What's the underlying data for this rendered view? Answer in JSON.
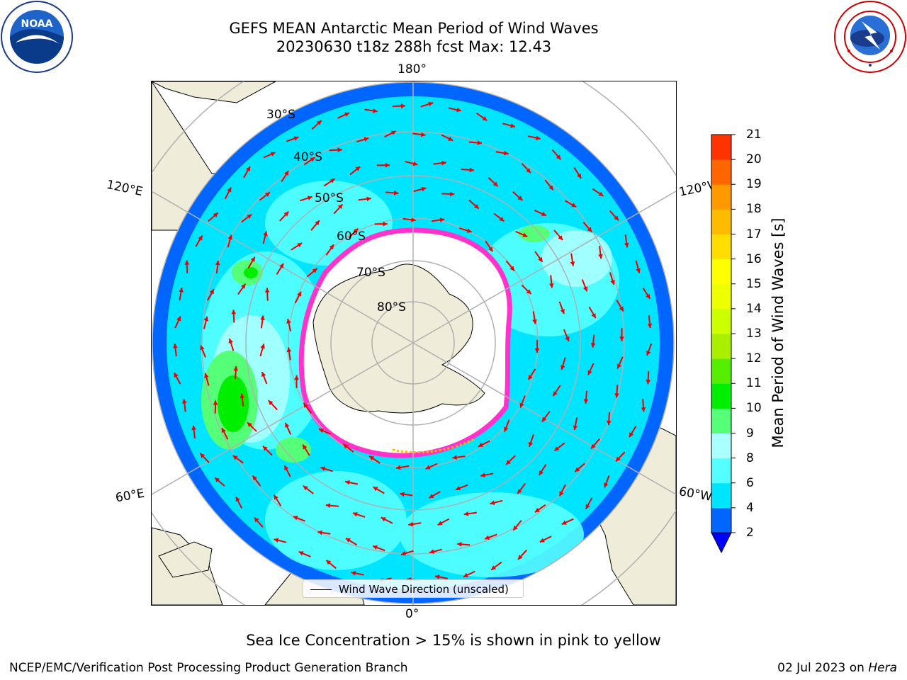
{
  "header": {
    "title_line1": "GEFS MEAN Antarctic Mean Period of Wind Waves",
    "title_line2": "20230630 t18z 288h fcst   Max: 12.43"
  },
  "logos": {
    "noaa": {
      "text": "NOAA",
      "ring_text": "NATIONAL OCEANIC AND ATMOSPHERIC ADMINISTRATION · U.S. DEPARTMENT OF COMMERCE"
    },
    "nws": {
      "ring_text": "NATIONAL WEATHER SERVICE"
    }
  },
  "map": {
    "projection": "south polar stereographic",
    "longitude_labels": {
      "top": "180°",
      "upper_left": "120°E",
      "upper_right": "120°W",
      "lower_left": "60°E",
      "lower_right": "60°W",
      "bottom": "0°"
    },
    "latitude_labels": [
      "30°S",
      "40°S",
      "50°S",
      "60°S",
      "70°S",
      "80°S"
    ],
    "legend_label": "Wind Wave Direction (unscaled)",
    "colors": {
      "land": "#efecd9",
      "ice_edge": "#ff33cc",
      "ice_free": "#ffffff",
      "arrow": "#ee0000",
      "grid": "#b0b0b0"
    }
  },
  "colorbar": {
    "label": "Mean Period of Wind Waves [s]",
    "ticks": [
      "2",
      "4",
      "6",
      "8",
      "9",
      "10",
      "11",
      "12",
      "13",
      "14",
      "15",
      "16",
      "17",
      "18",
      "19",
      "20",
      "21"
    ],
    "colors": [
      "#0066ff",
      "#00e5ff",
      "#55ffff",
      "#aaffff",
      "#55ff77",
      "#00ee00",
      "#55ee00",
      "#aaee00",
      "#ccff00",
      "#eeff00",
      "#ffff00",
      "#ffdd00",
      "#ffbb00",
      "#ff9900",
      "#ff6600",
      "#ff3300"
    ],
    "under_color": "#0000ff"
  },
  "caption": "Sea Ice Concentration > 15% is shown in pink to yellow",
  "footer": {
    "left": "NCEP/EMC/Verification Post Processing Product Generation Branch",
    "date": "02 Jul 2023 on",
    "system": "Hera"
  }
}
